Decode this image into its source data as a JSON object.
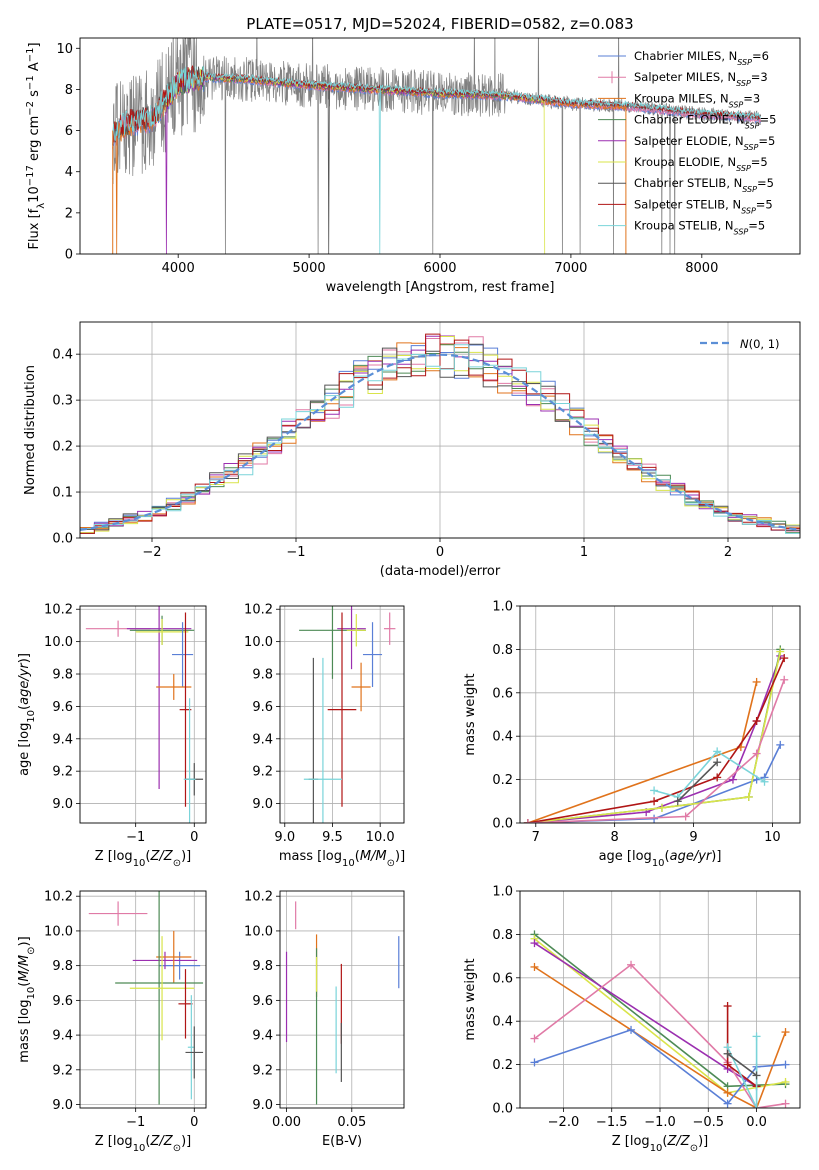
{
  "page_title": "PLATE=0517, MJD=52024, FIBERID=0582, z=0.083",
  "colors": {
    "Chabrier MILES": "#5a7fd6",
    "Salpeter MILES": "#e07aa6",
    "Kroupa MILES": "#e0731c",
    "Chabrier ELODIE": "#4d8a55",
    "Salpeter ELODIE": "#9b2fb0",
    "Kroupa ELODIE": "#d9e44a",
    "Chabrier STELIB": "#555555",
    "Salpeter STELIB": "#b01515",
    "Kroupa STELIB": "#7ad4d9"
  },
  "chart_data": [
    {
      "type": "line",
      "title": "PLATE=0517, MJD=52024, FIBERID=0582, z=0.083",
      "xlabel": "wavelength [Angstrom, rest frame]",
      "ylabel": "Flux [f_λ 10^-17 erg cm^-2 s^-1 A^-1]",
      "xlim": [
        3250,
        8750
      ],
      "ylim": [
        0,
        10.5
      ],
      "xticks": [
        "4000",
        "5000",
        "6000",
        "7000",
        "8000"
      ],
      "yticks": [
        "0",
        "2",
        "4",
        "6",
        "8",
        "10"
      ],
      "legend_position": "upper-right",
      "legend": [
        {
          "name": "Chabrier MILES",
          "nssp": "6"
        },
        {
          "name": "Salpeter MILES",
          "nssp": "3"
        },
        {
          "name": "Kroupa MILES",
          "nssp": "3"
        },
        {
          "name": "Chabrier ELODIE",
          "nssp": "5"
        },
        {
          "name": "Salpeter ELODIE",
          "nssp": "5"
        },
        {
          "name": "Kroupa ELODIE",
          "nssp": "5"
        },
        {
          "name": "Chabrier STELIB",
          "nssp": "5"
        },
        {
          "name": "Salpeter STELIB",
          "nssp": "5"
        },
        {
          "name": "Kroupa STELIB",
          "nssp": "5"
        }
      ],
      "data_trend": {
        "wavelength": [
          3500,
          3600,
          3800,
          4000,
          4200,
          4500,
          5000,
          5500,
          6000,
          6500,
          7000,
          7400,
          8000,
          8450
        ],
        "flux": [
          5.8,
          6.3,
          6.6,
          8.3,
          8.6,
          8.5,
          8.2,
          8.0,
          7.8,
          7.7,
          7.3,
          7.2,
          6.8,
          6.6
        ]
      },
      "grid": false
    },
    {
      "type": "bar",
      "xlabel": "(data-model)/error",
      "ylabel": "Normed distribution",
      "xlim": [
        -2.5,
        2.5
      ],
      "ylim": [
        0,
        0.47
      ],
      "xticks": [
        "−2",
        "−1",
        "0",
        "1",
        "2"
      ],
      "yticks": [
        "0.0",
        "0.1",
        "0.2",
        "0.3",
        "0.4"
      ],
      "reference_curve": "N(0,1)",
      "legend_position": "upper-right",
      "grid": true
    },
    {
      "type": "scatter",
      "xlabel": "Z [log10(Z/Z☉)]",
      "ylabel": "age [log10(age/yr)]",
      "xlim": [
        -1.95,
        0.2
      ],
      "ylim": [
        8.88,
        10.22
      ],
      "xticks": [
        "−1",
        "0"
      ],
      "yticks": [
        "9.0",
        "9.2",
        "9.4",
        "9.6",
        "9.8",
        "10.0",
        "10.2"
      ],
      "grid": true
    },
    {
      "type": "scatter",
      "xlabel": "mass [log10(M/M☉)]",
      "ylabel": "",
      "xlim": [
        8.95,
        10.25
      ],
      "ylim": [
        8.88,
        10.22
      ],
      "xticks": [
        "9.0",
        "9.5",
        "10.0"
      ],
      "yticks": [
        "9.0",
        "9.2",
        "9.4",
        "9.6",
        "9.8",
        "10.0",
        "10.2"
      ],
      "grid": true
    },
    {
      "type": "line",
      "xlabel": "age [log10(age/yr)]",
      "ylabel": "mass weight",
      "xlim": [
        6.8,
        10.35
      ],
      "ylim": [
        0,
        1
      ],
      "xticks": [
        "7",
        "8",
        "9",
        "10"
      ],
      "yticks": [
        "0.0",
        "0.2",
        "0.4",
        "0.6",
        "0.8",
        "1.0"
      ],
      "grid": true
    },
    {
      "type": "scatter",
      "xlabel": "Z [log10(Z/Z☉)]",
      "ylabel": "mass [log10(M/M☉)]",
      "xlim": [
        -1.95,
        0.2
      ],
      "ylim": [
        8.98,
        10.23
      ],
      "xticks": [
        "−1",
        "0"
      ],
      "yticks": [
        "9.0",
        "9.2",
        "9.4",
        "9.6",
        "9.8",
        "10.0",
        "10.2"
      ],
      "grid": true
    },
    {
      "type": "scatter",
      "xlabel": "E(B-V)",
      "ylabel": "",
      "xlim": [
        -0.005,
        0.09
      ],
      "ylim": [
        8.98,
        10.23
      ],
      "xticks": [
        "0.00",
        "0.05"
      ],
      "yticks": [
        "9.0",
        "9.2",
        "9.4",
        "9.6",
        "9.8",
        "10.0",
        "10.2"
      ],
      "grid": true
    },
    {
      "type": "line",
      "xlabel": "Z [log10(Z/Z☉)]",
      "ylabel": "mass weight",
      "xlim": [
        -2.45,
        0.45
      ],
      "ylim": [
        0,
        1
      ],
      "xticks": [
        "−2.0",
        "−1.5",
        "−1.0",
        "−0.5",
        "0.0"
      ],
      "yticks": [
        "0.0",
        "0.2",
        "0.4",
        "0.6",
        "0.8",
        "1.0"
      ],
      "grid": true
    }
  ]
}
